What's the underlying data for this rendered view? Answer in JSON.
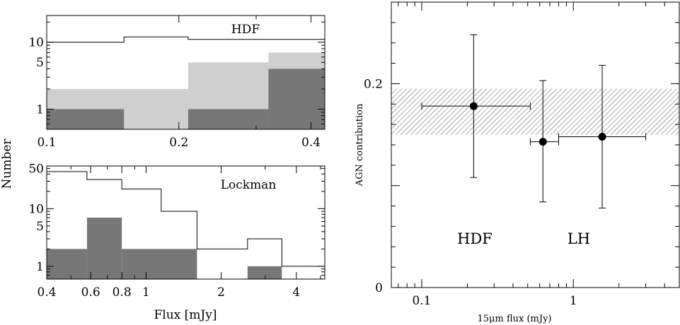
{
  "chart_data": [
    {
      "id": "hdf",
      "type": "histogram",
      "panel_label": "HDF",
      "xscale": "log",
      "yscale": "log",
      "xlim": [
        0.1,
        0.43
      ],
      "ylim": [
        0.5,
        25
      ],
      "xticks": [
        {
          "v": 0.1,
          "label": "0.1"
        },
        {
          "v": 0.2,
          "label": "0.2"
        },
        {
          "v": 0.4,
          "label": "0.4"
        }
      ],
      "yticks": [
        {
          "v": 1,
          "label": "1"
        },
        {
          "v": 5,
          "label": "5"
        },
        {
          "v": 10,
          "label": "10"
        }
      ],
      "series": [
        {
          "role": "all",
          "style": "outline",
          "bins": [
            [
              0.1,
              0.15,
              10
            ],
            [
              0.15,
              0.21,
              12
            ],
            [
              0.21,
              0.43,
              11
            ]
          ]
        },
        {
          "role": "subset",
          "style": "light-fill",
          "bins": [
            [
              0.1,
              0.21,
              2
            ],
            [
              0.21,
              0.32,
              5
            ],
            [
              0.32,
              0.43,
              7
            ]
          ]
        },
        {
          "role": "subset",
          "style": "dark-fill",
          "bins": [
            [
              0.1,
              0.15,
              1
            ],
            [
              0.21,
              0.32,
              1
            ],
            [
              0.32,
              0.43,
              4
            ]
          ]
        }
      ]
    },
    {
      "id": "lockman",
      "type": "histogram",
      "panel_label": "Lockman",
      "xscale": "log",
      "yscale": "log",
      "xlim": [
        0.4,
        5.2
      ],
      "ylim": [
        0.6,
        55
      ],
      "xticks": [
        {
          "v": 0.4,
          "label": "0.4"
        },
        {
          "v": 0.6,
          "label": "0.6"
        },
        {
          "v": 0.8,
          "label": "0.8"
        },
        {
          "v": 1,
          "label": "1"
        },
        {
          "v": 2,
          "label": "2"
        },
        {
          "v": 4,
          "label": "4"
        }
      ],
      "yticks": [
        {
          "v": 1,
          "label": "1"
        },
        {
          "v": 5,
          "label": "5"
        },
        {
          "v": 10,
          "label": "10"
        },
        {
          "v": 50,
          "label": "50"
        }
      ],
      "xlabel": "Flux [mJy]",
      "series": [
        {
          "role": "all",
          "style": "outline",
          "bins": [
            [
              0.4,
              0.58,
              44
            ],
            [
              0.58,
              0.8,
              32
            ],
            [
              0.8,
              1.15,
              22
            ],
            [
              1.15,
              1.6,
              9
            ],
            [
              1.6,
              2.55,
              2
            ],
            [
              2.55,
              3.5,
              3
            ],
            [
              3.5,
              5.2,
              1
            ]
          ]
        },
        {
          "role": "subset",
          "style": "dark-fill",
          "bins": [
            [
              0.4,
              0.58,
              2
            ],
            [
              0.58,
              0.8,
              7
            ],
            [
              0.8,
              1.6,
              2
            ],
            [
              2.55,
              3.5,
              1
            ]
          ]
        }
      ]
    },
    {
      "id": "agn",
      "type": "scatter",
      "xscale": "log",
      "xlim": [
        0.063,
        5.0
      ],
      "ylim": [
        0,
        0.28
      ],
      "xticks": [
        {
          "v": 0.1,
          "label": "0.1"
        },
        {
          "v": 1,
          "label": "1"
        }
      ],
      "yticks": [
        {
          "v": 0,
          "label": "0"
        },
        {
          "v": 0.2,
          "label": "0.2"
        }
      ],
      "xlabel": "15μm flux (mJy)",
      "ylabel": "AGN contribution",
      "band": {
        "y_low": 0.15,
        "y_high": 0.195
      },
      "points": [
        {
          "x": 0.22,
          "xerr_low": 0.1,
          "xerr_high": 0.52,
          "y": 0.178,
          "yerr_low": 0.108,
          "yerr_high": 0.248
        },
        {
          "x": 0.63,
          "xerr_low": 0.52,
          "xerr_high": 0.8,
          "y": 0.143,
          "yerr_low": 0.084,
          "yerr_high": 0.203
        },
        {
          "x": 1.55,
          "xerr_low": 0.8,
          "xerr_high": 3.0,
          "y": 0.148,
          "yerr_low": 0.078,
          "yerr_high": 0.218
        }
      ],
      "annotations": [
        {
          "text": "HDF",
          "x": 0.22,
          "y": 0.05
        },
        {
          "text": "LH",
          "x": 1.0,
          "y": 0.05
        }
      ]
    }
  ],
  "shared_ylabel": "Number"
}
